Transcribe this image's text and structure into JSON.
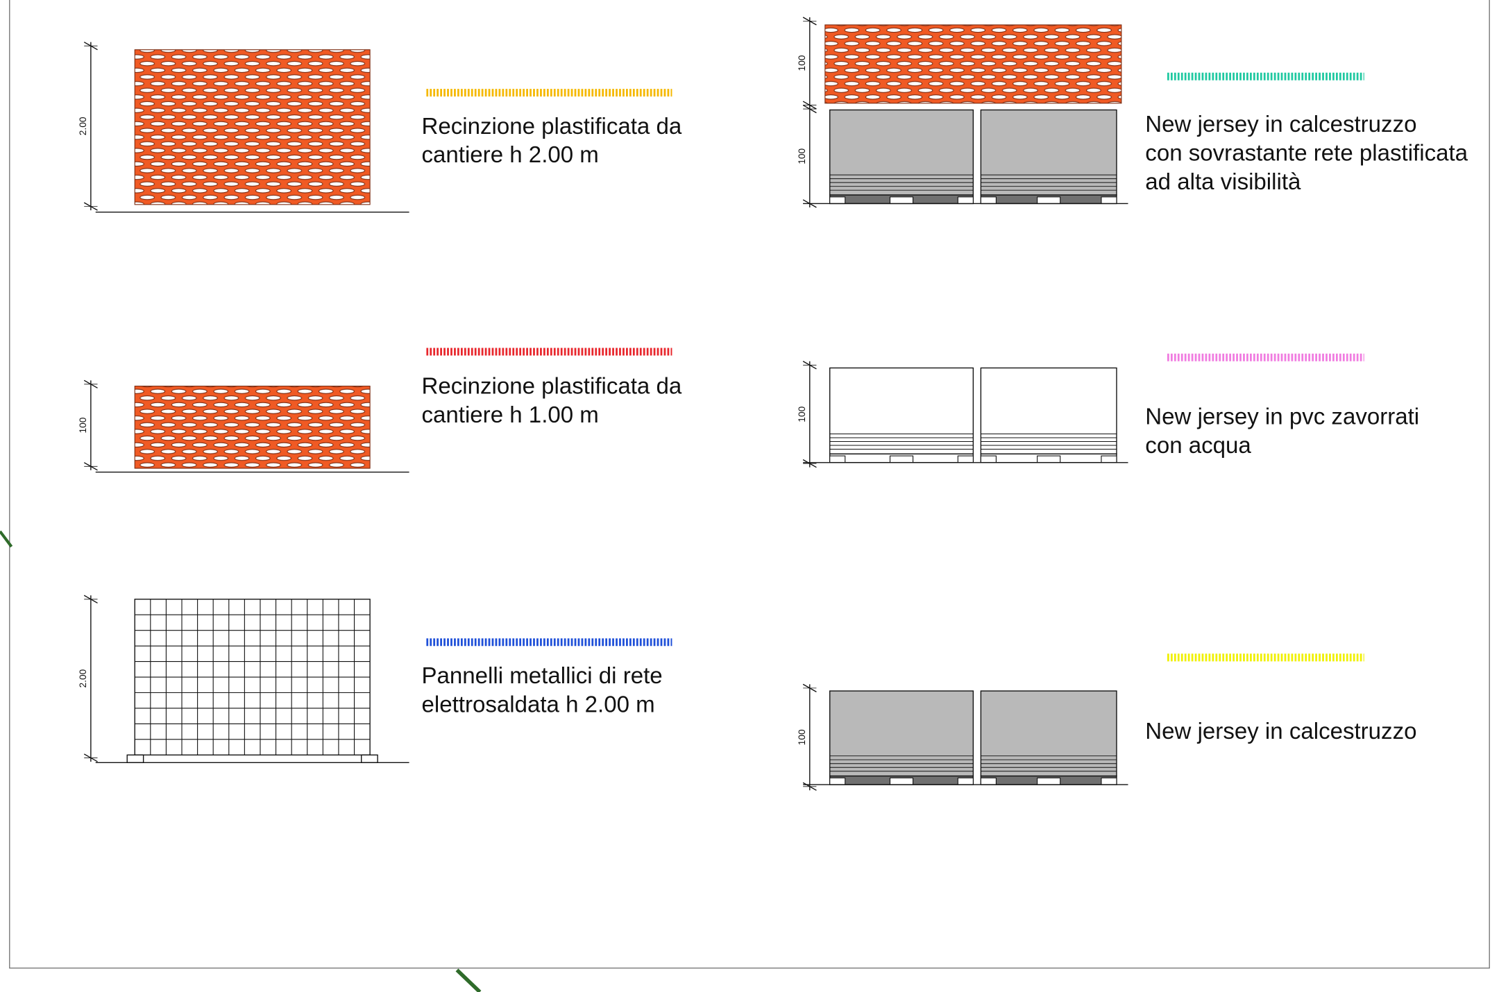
{
  "legend_items": [
    {
      "dimensions": [
        "2.00"
      ],
      "lines": [
        "Recinzione plastificata da",
        "cantiere h 2.00 m"
      ]
    },
    {
      "dimensions": [
        "100"
      ],
      "lines": [
        "Recinzione plastificata da",
        "cantiere h 1.00 m"
      ]
    },
    {
      "dimensions": [
        "2.00"
      ],
      "lines": [
        "Pannelli metallici di rete",
        "elettrosaldata h 2.00 m"
      ]
    },
    {
      "dimensions": [
        "100",
        "100"
      ],
      "lines": [
        "New jersey in calcestruzzo",
        "con sovrastante rete plastificata",
        "ad alta visibilità"
      ]
    },
    {
      "dimensions": [
        "100"
      ],
      "lines": [
        "New jersey in pvc zavorrati",
        "con acqua"
      ]
    },
    {
      "dimensions": [
        "100"
      ],
      "lines": [
        "New jersey in calcestruzzo"
      ]
    }
  ]
}
